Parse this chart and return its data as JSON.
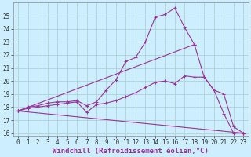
{
  "xlabel": "Windchill (Refroidissement éolien,°C)",
  "bg_color": "#cceeff",
  "grid_color": "#aacccc",
  "line_color": "#993399",
  "xlim": [
    -0.5,
    23.5
  ],
  "ylim": [
    15.8,
    26.0
  ],
  "xticks": [
    0,
    1,
    2,
    3,
    4,
    5,
    6,
    7,
    8,
    9,
    10,
    11,
    12,
    13,
    14,
    15,
    16,
    17,
    18,
    19,
    20,
    21,
    22,
    23
  ],
  "yticks": [
    16,
    17,
    18,
    19,
    20,
    21,
    22,
    23,
    24,
    25
  ],
  "lines": [
    {
      "x": [
        0,
        1,
        2,
        3,
        4,
        5,
        6,
        7,
        8,
        9,
        10,
        11,
        12,
        13,
        14,
        15,
        16,
        17,
        18,
        19,
        20,
        21,
        22,
        23
      ],
      "y": [
        17.7,
        18.0,
        18.1,
        18.3,
        18.4,
        18.4,
        18.5,
        18.1,
        18.4,
        19.3,
        20.1,
        21.5,
        21.8,
        23.0,
        24.9,
        25.1,
        25.6,
        24.1,
        22.8,
        20.3,
        19.3,
        17.5,
        16.0,
        16.0
      ]
    },
    {
      "x": [
        0,
        1,
        2,
        3,
        4,
        5,
        6,
        7,
        8,
        9,
        10,
        11,
        12,
        13,
        14,
        15,
        16,
        17,
        18,
        19,
        20,
        21,
        22,
        23
      ],
      "y": [
        17.7,
        17.9,
        18.0,
        18.1,
        18.2,
        18.3,
        18.4,
        17.6,
        18.2,
        18.3,
        18.5,
        18.8,
        19.1,
        19.5,
        19.9,
        20.0,
        19.8,
        20.4,
        20.3,
        20.3,
        19.3,
        19.0,
        16.5,
        16.0
      ]
    },
    {
      "x": [
        0,
        18
      ],
      "y": [
        17.7,
        22.8
      ]
    },
    {
      "x": [
        0,
        23
      ],
      "y": [
        17.7,
        16.0
      ]
    }
  ],
  "marker": "+",
  "markersize": 3,
  "linewidth": 0.8,
  "fontsize_ticks": 5.5,
  "fontsize_label": 6.5
}
